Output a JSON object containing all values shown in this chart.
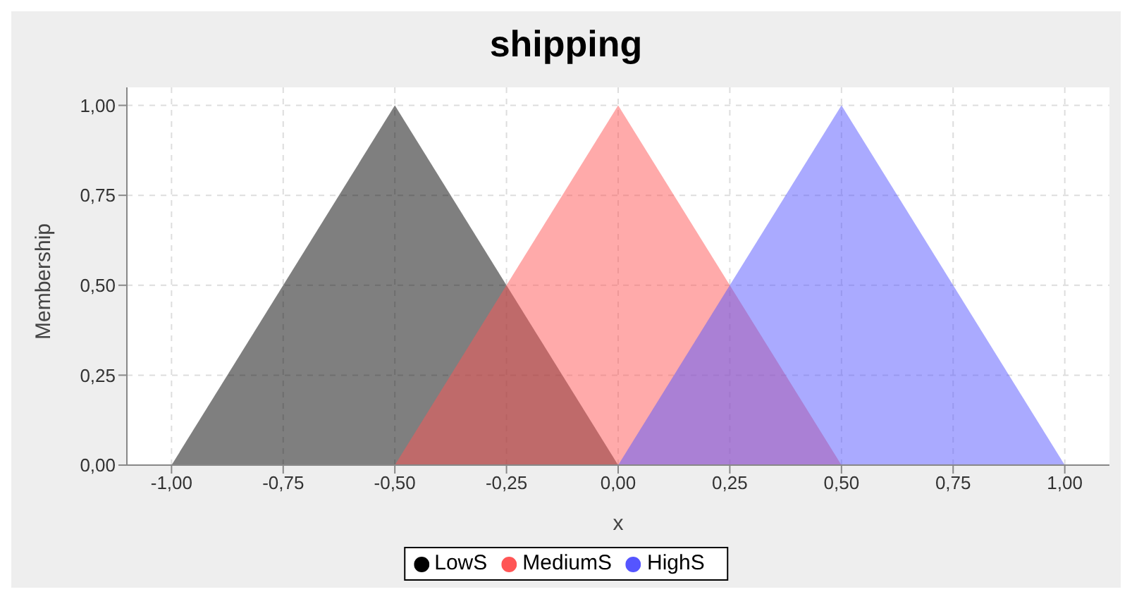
{
  "chart_data": {
    "type": "area",
    "title": "shipping",
    "xlabel": "x",
    "ylabel": "Membership",
    "series": [
      {
        "name": "LowS",
        "color": "#000000",
        "x": [
          -1,
          -0.5,
          0
        ],
        "values": [
          0,
          1,
          0
        ]
      },
      {
        "name": "MediumS",
        "color": "#ff5555",
        "x": [
          -0.5,
          0,
          0.5
        ],
        "values": [
          0,
          1,
          0
        ]
      },
      {
        "name": "HighS",
        "color": "#5555ff",
        "x": [
          0,
          0.5,
          1
        ],
        "values": [
          0,
          1,
          0
        ]
      }
    ],
    "xlim": [
      -1.1,
      1.1
    ],
    "ylim": [
      0,
      1.05
    ],
    "xticks": [
      {
        "value": -1,
        "label": "-1,00"
      },
      {
        "value": -0.75,
        "label": "-0,75"
      },
      {
        "value": -0.5,
        "label": "-0,50"
      },
      {
        "value": -0.25,
        "label": "-0,25"
      },
      {
        "value": 0,
        "label": "0,00"
      },
      {
        "value": 0.25,
        "label": "0,25"
      },
      {
        "value": 0.5,
        "label": "0,50"
      },
      {
        "value": 0.75,
        "label": "0,75"
      },
      {
        "value": 1,
        "label": "1,00"
      }
    ],
    "yticks": [
      {
        "value": 0,
        "label": "0,00"
      },
      {
        "value": 0.25,
        "label": "0,25"
      },
      {
        "value": 0.5,
        "label": "0,50"
      },
      {
        "value": 0.75,
        "label": "0,75"
      },
      {
        "value": 1,
        "label": "1,00"
      }
    ],
    "grid": true,
    "legend": "bottom"
  }
}
